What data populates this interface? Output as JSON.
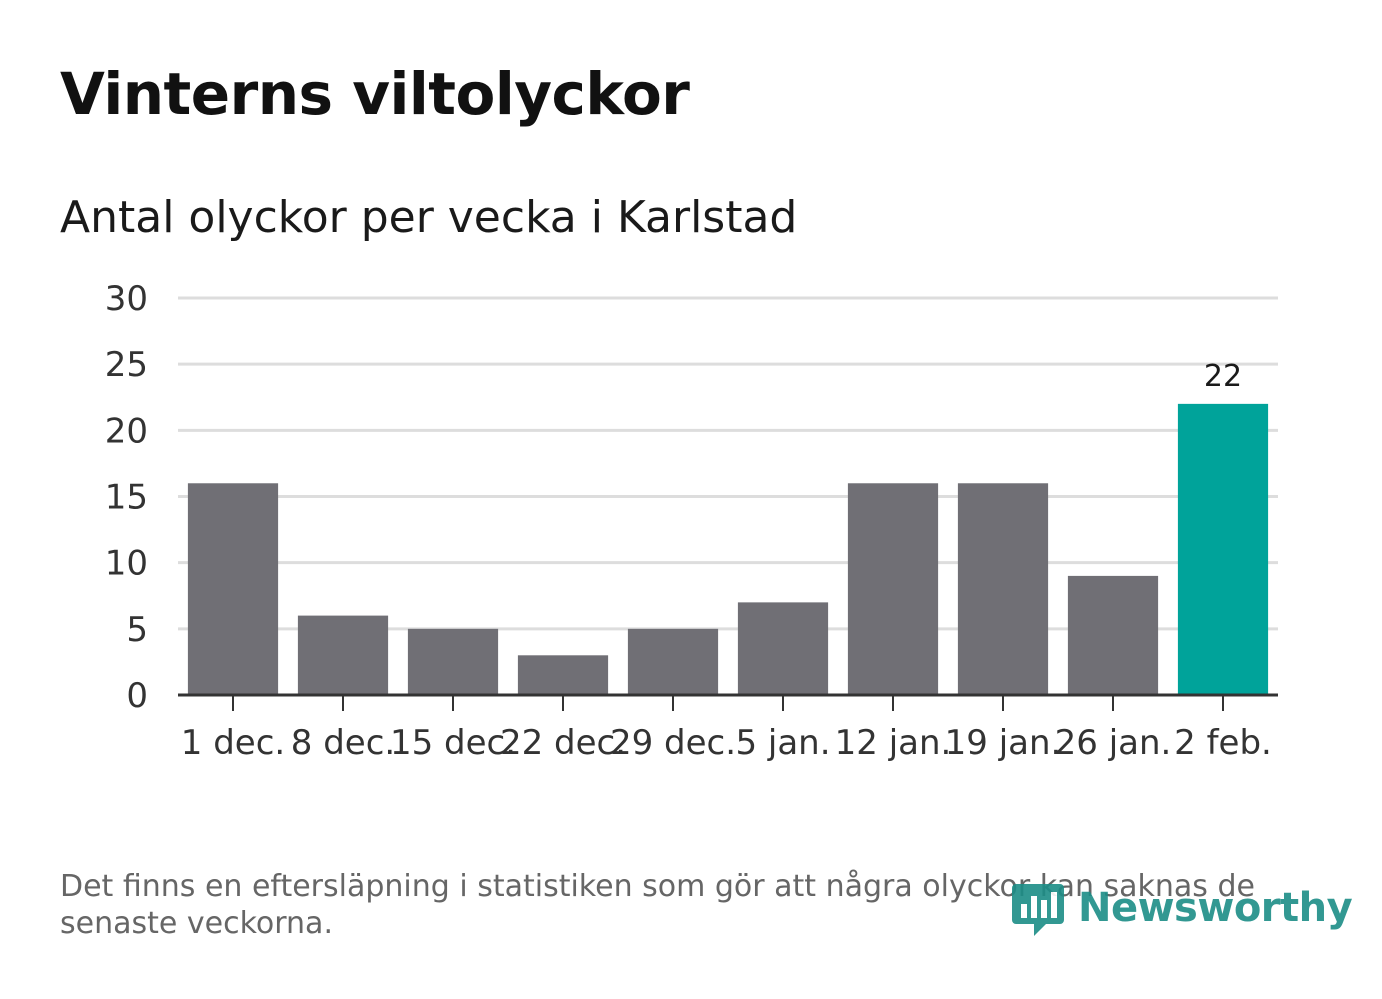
{
  "title": "Vinterns viltolyckor",
  "subtitle": "Antal olyckor per vecka i Karlstad",
  "note": "Det finns en eftersläpning i statistiken som gör att några olyckor kan saknas de senaste veckorna.",
  "logo": {
    "text": "Newsworthy",
    "icon": "newsworthy-bar-chart-icon",
    "color": "#1c8d87"
  },
  "colors": {
    "bar": "#706f75",
    "highlight": "#00a39a",
    "grid": "#dddddd",
    "axis": "#333333"
  },
  "chart_data": {
    "type": "bar",
    "categories": [
      "1 dec.",
      "8 dec.",
      "15 dec.",
      "22 dec.",
      "29 dec.",
      "5 jan.",
      "12 jan.",
      "19 jan.",
      "26 jan.",
      "2 feb."
    ],
    "values": [
      16,
      6,
      5,
      3,
      5,
      7,
      16,
      16,
      9,
      22
    ],
    "highlight_index": 9,
    "data_labels": [
      {
        "index": 9,
        "text": "22"
      }
    ],
    "ylim": [
      0,
      30
    ],
    "yticks": [
      0,
      5,
      10,
      15,
      20,
      25,
      30
    ],
    "xlabel": "",
    "ylabel": "",
    "grid": true,
    "legend": "none"
  }
}
